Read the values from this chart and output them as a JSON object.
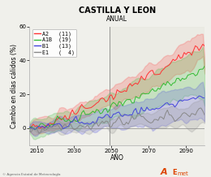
{
  "title": "CASTILLA Y LEON",
  "subtitle": "ANUAL",
  "xlabel": "AÑO",
  "ylabel": "Cambio en días cálidos (%)",
  "xmin": 2006,
  "xmax": 2100,
  "ymin": -10,
  "ymax": 60,
  "yticks": [
    0,
    20,
    40,
    60
  ],
  "xticks": [
    2010,
    2030,
    2050,
    2070,
    2090
  ],
  "vline_x": 2049,
  "hline_y": 0,
  "scenarios": [
    "A2",
    "A1B",
    "B1",
    "E1"
  ],
  "scenario_counts": [
    11,
    19,
    13,
    4
  ],
  "scenario_colors": [
    "#ff3333",
    "#33bb33",
    "#4444dd",
    "#888888"
  ],
  "seed": 42,
  "footer_text": "© Agencia Estatal de Meteorología",
  "title_fontsize": 7.0,
  "subtitle_fontsize": 5.5,
  "axis_fontsize": 5.5,
  "tick_fontsize": 5.0,
  "legend_fontsize": 4.8
}
